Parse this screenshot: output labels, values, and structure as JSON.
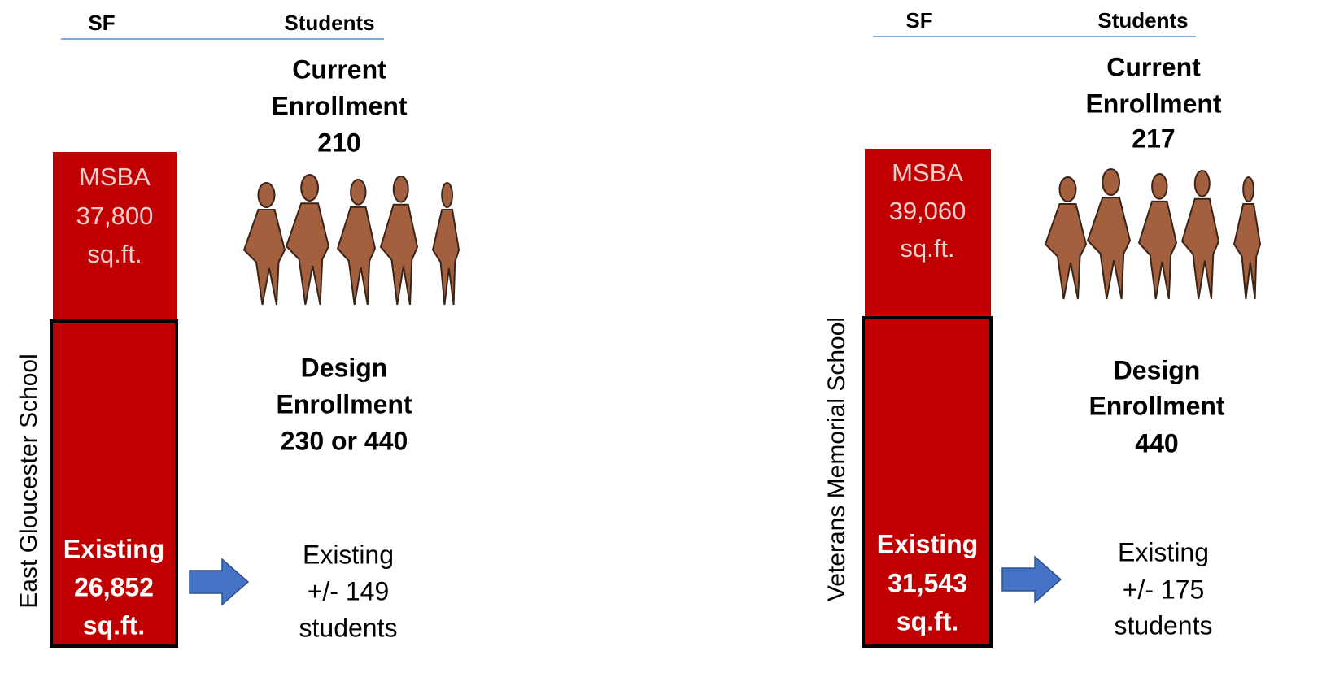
{
  "panels": [
    {
      "school": "East Gloucester School",
      "header": {
        "sf": "SF",
        "students": "Students"
      },
      "msba": [
        "MSBA",
        "37,800",
        "sq.ft."
      ],
      "current": [
        "Current",
        "Enrollment",
        "210"
      ],
      "design": [
        "Design",
        "Enrollment",
        "230 or 440"
      ],
      "existing_sf": [
        "Existing",
        "26,852",
        "sq.ft."
      ],
      "existing_students": [
        "Existing",
        "+/- 149",
        "students"
      ]
    },
    {
      "school": "Veterans Memorial School",
      "header": {
        "sf": "SF",
        "students": "Students"
      },
      "msba": [
        "MSBA",
        "39,060",
        "sq.ft."
      ],
      "current": [
        "Current",
        "Enrollment",
        "217"
      ],
      "design": [
        "Design",
        "Enrollment",
        "440"
      ],
      "existing_sf": [
        "Existing",
        "31,543",
        "sq.ft."
      ],
      "existing_students": [
        "Existing",
        "+/- 175",
        "students"
      ]
    }
  ]
}
